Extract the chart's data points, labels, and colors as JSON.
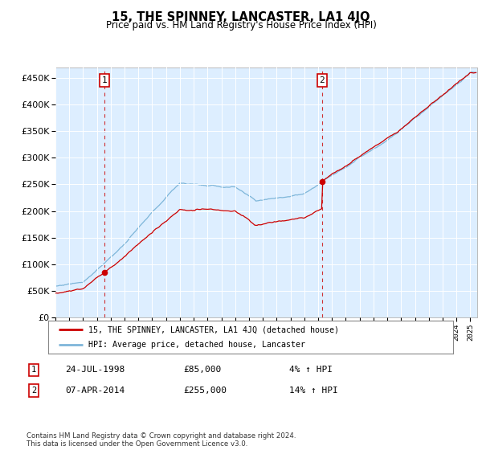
{
  "title": "15, THE SPINNEY, LANCASTER, LA1 4JQ",
  "subtitle": "Price paid vs. HM Land Registry's House Price Index (HPI)",
  "hpi_line_color": "#7eb6d9",
  "price_line_color": "#cc0000",
  "marker_color": "#cc0000",
  "vline_color": "#cc0000",
  "plot_bg_color": "#ddeeff",
  "grid_color": "#ffffff",
  "sale1_price": 85000,
  "sale1_label": "1",
  "sale1_year": 1998.56,
  "sale2_price": 255000,
  "sale2_label": "2",
  "sale2_year": 2014.27,
  "legend_line1": "15, THE SPINNEY, LANCASTER, LA1 4JQ (detached house)",
  "legend_line2": "HPI: Average price, detached house, Lancaster",
  "annotation1_date": "24-JUL-1998",
  "annotation1_price": "£85,000",
  "annotation1_hpi": "4% ↑ HPI",
  "annotation2_date": "07-APR-2014",
  "annotation2_price": "£255,000",
  "annotation2_hpi": "14% ↑ HPI",
  "footer": "Contains HM Land Registry data © Crown copyright and database right 2024.\nThis data is licensed under the Open Government Licence v3.0.",
  "ylim_min": 0,
  "ylim_max": 470000,
  "xmin": 1995.0,
  "xmax": 2025.5
}
